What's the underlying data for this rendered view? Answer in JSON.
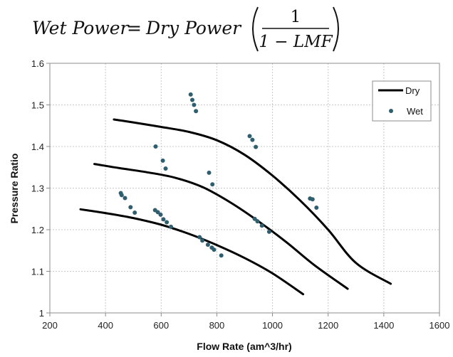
{
  "formula": {
    "lhs": "Wet Power",
    "equals": "=",
    "rhs": "Dry Power",
    "numerator": "1",
    "denominator": "1 − LMF"
  },
  "chart_data": {
    "type": "scatter",
    "title": "",
    "xlabel": "Flow Rate (am^3/hr)",
    "ylabel": "Pressure Ratio",
    "xlim": [
      200,
      1600
    ],
    "ylim": [
      1.0,
      1.6
    ],
    "xticks": [
      200,
      400,
      600,
      800,
      1000,
      1200,
      1400,
      1600
    ],
    "yticks": [
      1.0,
      1.1,
      1.2,
      1.3,
      1.4,
      1.5,
      1.6
    ],
    "xtick_labels": [
      "200",
      "400",
      "600",
      "800",
      "1000",
      "1200",
      "1400",
      "1600"
    ],
    "ytick_labels": [
      "1",
      "1.1",
      "1.2",
      "1.3",
      "1.4",
      "1.5",
      "1.6"
    ],
    "grid": true,
    "legend_position": "top-right",
    "colors": {
      "dry": "#000000",
      "wet": "#2f5f6e"
    },
    "series": [
      {
        "name": "Dry",
        "style": "line",
        "curves": [
          [
            [
              430,
              1.465
            ],
            [
              500,
              1.458
            ],
            [
              600,
              1.447
            ],
            [
              700,
              1.435
            ],
            [
              800,
              1.415
            ],
            [
              900,
              1.38
            ],
            [
              1000,
              1.33
            ],
            [
              1100,
              1.27
            ],
            [
              1200,
              1.2
            ],
            [
              1300,
              1.12
            ],
            [
              1425,
              1.07
            ]
          ],
          [
            [
              360,
              1.358
            ],
            [
              450,
              1.348
            ],
            [
              550,
              1.338
            ],
            [
              650,
              1.325
            ],
            [
              750,
              1.302
            ],
            [
              850,
              1.265
            ],
            [
              950,
              1.22
            ],
            [
              1050,
              1.17
            ],
            [
              1150,
              1.115
            ],
            [
              1270,
              1.058
            ]
          ],
          [
            [
              310,
              1.249
            ],
            [
              400,
              1.24
            ],
            [
              500,
              1.228
            ],
            [
              600,
              1.212
            ],
            [
              700,
              1.19
            ],
            [
              800,
              1.163
            ],
            [
              900,
              1.132
            ],
            [
              1000,
              1.095
            ],
            [
              1110,
              1.045
            ]
          ]
        ]
      },
      {
        "name": "Wet",
        "style": "marker",
        "points": [
          [
            455,
            1.288
          ],
          [
            458,
            1.283
          ],
          [
            470,
            1.276
          ],
          [
            490,
            1.254
          ],
          [
            505,
            1.241
          ],
          [
            578,
            1.247
          ],
          [
            588,
            1.242
          ],
          [
            598,
            1.236
          ],
          [
            608,
            1.225
          ],
          [
            620,
            1.218
          ],
          [
            635,
            1.207
          ],
          [
            580,
            1.4
          ],
          [
            606,
            1.366
          ],
          [
            616,
            1.347
          ],
          [
            706,
            1.525
          ],
          [
            712,
            1.512
          ],
          [
            718,
            1.5
          ],
          [
            725,
            1.485
          ],
          [
            738,
            1.182
          ],
          [
            748,
            1.174
          ],
          [
            768,
            1.164
          ],
          [
            782,
            1.157
          ],
          [
            790,
            1.152
          ],
          [
            816,
            1.138
          ],
          [
            772,
            1.337
          ],
          [
            784,
            1.309
          ],
          [
            918,
            1.425
          ],
          [
            928,
            1.416
          ],
          [
            940,
            1.399
          ],
          [
            936,
            1.226
          ],
          [
            946,
            1.22
          ],
          [
            962,
            1.21
          ],
          [
            988,
            1.195
          ],
          [
            1135,
            1.275
          ],
          [
            1144,
            1.273
          ],
          [
            1158,
            1.253
          ]
        ]
      }
    ]
  }
}
